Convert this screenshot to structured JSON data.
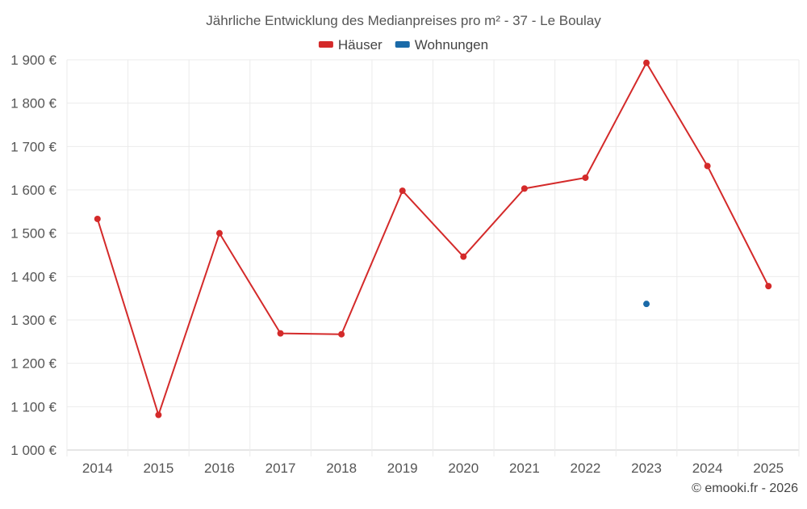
{
  "chart_data": {
    "type": "line",
    "title": "Jährliche Entwicklung des Medianpreises pro m² - 37 - Le Boulay",
    "categories": [
      "2014",
      "2015",
      "2016",
      "2017",
      "2018",
      "2019",
      "2020",
      "2021",
      "2022",
      "2023",
      "2024",
      "2025"
    ],
    "series": [
      {
        "name": "Häuser",
        "color": "#d42a2a",
        "values": [
          1533,
          1081,
          1500,
          1269,
          1267,
          1598,
          1446,
          1603,
          1628,
          1893,
          1655,
          1378
        ]
      },
      {
        "name": "Wohnungen",
        "color": "#1a6aa8",
        "values": [
          null,
          null,
          null,
          null,
          null,
          null,
          null,
          null,
          null,
          1337,
          null,
          null
        ]
      }
    ],
    "ylim": [
      1000,
      1900
    ],
    "yticks": [
      1000,
      1100,
      1200,
      1300,
      1400,
      1500,
      1600,
      1700,
      1800,
      1900
    ],
    "ytick_labels": [
      "1 000 €",
      "1 100 €",
      "1 200 €",
      "1 300 €",
      "1 400 €",
      "1 500 €",
      "1 600 €",
      "1 700 €",
      "1 800 €",
      "1 900 €"
    ],
    "xlabel": "",
    "ylabel": "",
    "legend_position": "top-center",
    "grid": true
  },
  "credit": "© emooki.fr - 2026"
}
